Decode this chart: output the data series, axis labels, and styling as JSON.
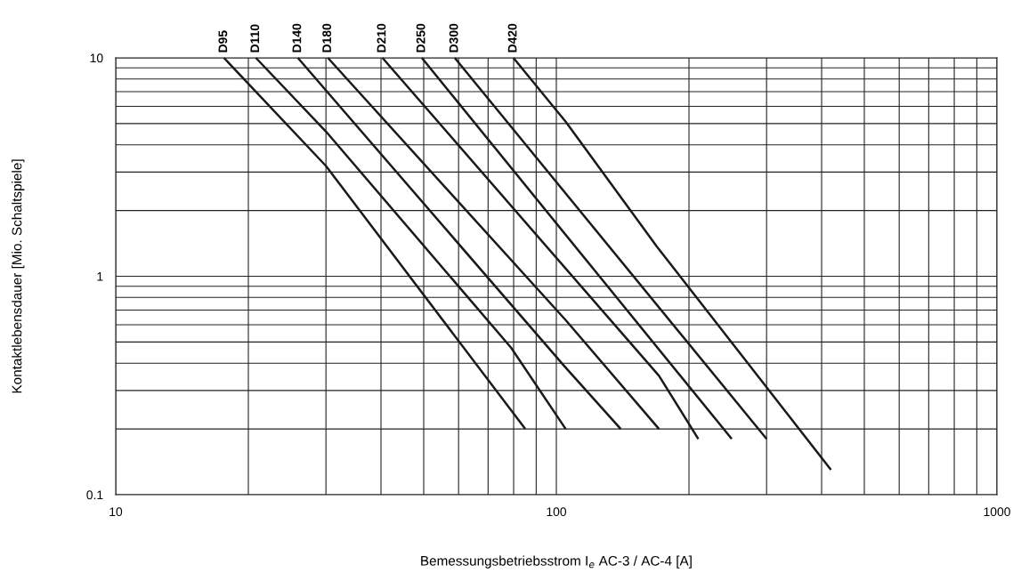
{
  "chart_data": {
    "type": "line",
    "xlabel": "Bemessungsbetriebsstrom I$_{e}$ AC-3 / AC-4 [A]",
    "ylabel": "Kontaktlebensdauer [Mio. Schaltspiele]",
    "log": "xy",
    "grid": true,
    "legend": false,
    "marker": "none",
    "line_style": "solid",
    "xlim": [
      10,
      1000
    ],
    "ylim": [
      0.1,
      10
    ],
    "xticks": [
      10,
      {
        "value": 20,
        "label": null
      },
      {
        "value": 30,
        "label": null
      },
      {
        "value": 40,
        "label": null
      },
      {
        "value": 50,
        "label": null
      },
      {
        "value": 60,
        "label": null
      },
      {
        "value": 70,
        "label": null
      },
      {
        "value": 80,
        "label": null
      },
      {
        "value": 90,
        "label": null
      },
      100,
      {
        "value": 200,
        "label": null
      },
      {
        "value": 300,
        "label": null
      },
      {
        "value": 400,
        "label": null
      },
      {
        "value": 500,
        "label": null
      },
      {
        "value": 600,
        "label": null
      },
      {
        "value": 700,
        "label": null
      },
      {
        "value": 800,
        "label": null
      },
      {
        "value": 900,
        "label": null
      },
      1000
    ],
    "yticks": [
      0.1,
      {
        "value": 0.2,
        "label": null
      },
      {
        "value": 0.3,
        "label": null
      },
      {
        "value": 0.4,
        "label": null
      },
      {
        "value": 0.5,
        "label": null
      },
      {
        "value": 0.6,
        "label": null
      },
      {
        "value": 0.7,
        "label": null
      },
      {
        "value": 0.8,
        "label": null
      },
      {
        "value": 0.9,
        "label": null
      },
      1,
      {
        "value": 2,
        "label": null
      },
      {
        "value": 3,
        "label": null
      },
      {
        "value": 4,
        "label": null
      },
      {
        "value": 5,
        "label": null
      },
      {
        "value": 6,
        "label": null
      },
      {
        "value": 7,
        "label": null
      },
      {
        "value": 8,
        "label": null
      },
      {
        "value": 9,
        "label": null
      },
      10
    ],
    "series": [
      {
        "name": "D95",
        "color": "#1a1a1a",
        "x": [
          17.6,
          30,
          85
        ],
        "values": [
          10,
          3.2,
          0.2
        ]
      },
      {
        "name": "D110",
        "color": "#1a1a1a",
        "x": [
          20.8,
          30,
          79,
          105
        ],
        "values": [
          10,
          4.6,
          0.47,
          0.2
        ]
      },
      {
        "name": "D140",
        "color": "#1a1a1a",
        "x": [
          25.9,
          104,
          140
        ],
        "values": [
          10,
          0.39,
          0.2
        ]
      },
      {
        "name": "D180",
        "color": "#1a1a1a",
        "x": [
          30.3,
          105,
          171
        ],
        "values": [
          10,
          0.63,
          0.2
        ]
      },
      {
        "name": "D210",
        "color": "#1a1a1a",
        "x": [
          40.3,
          171,
          210
        ],
        "values": [
          10,
          0.35,
          0.18
        ]
      },
      {
        "name": "D250",
        "color": "#1a1a1a",
        "x": [
          49.5,
          250
        ],
        "values": [
          10,
          0.18
        ]
      },
      {
        "name": "D300",
        "color": "#1a1a1a",
        "x": [
          58.8,
          300
        ],
        "values": [
          10,
          0.18
        ]
      },
      {
        "name": "D420",
        "color": "#1a1a1a",
        "x": [
          79.9,
          105,
          169,
          420
        ],
        "values": [
          10,
          5.1,
          1.37,
          0.13
        ]
      }
    ]
  }
}
